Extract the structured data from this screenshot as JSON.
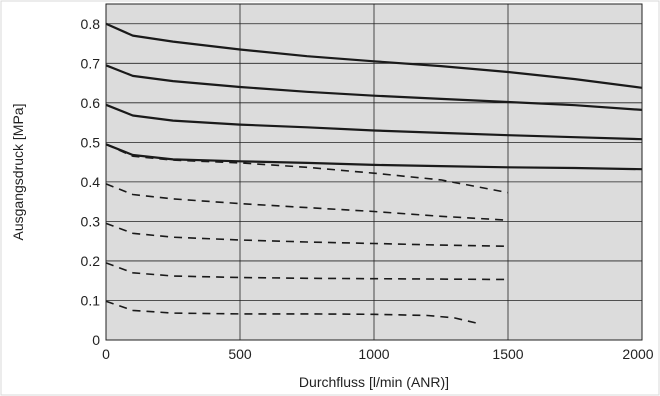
{
  "chart_data": {
    "type": "line",
    "xlabel": "Durchfluss [l/min (ANR)]",
    "ylabel": "Ausgangsdruck [MPa]",
    "xlim": [
      0,
      2000
    ],
    "ylim": [
      0,
      0.85
    ],
    "x_ticks": [
      "0",
      "500",
      "1000",
      "1500",
      "2000"
    ],
    "y_ticks": [
      "0",
      "0.1",
      "0.2",
      "0.3",
      "0.4",
      "0.5",
      "0.6",
      "0.7",
      "0.8"
    ],
    "grid": true,
    "background_color": "#dcdcdc",
    "line_color": "#1a1a1a",
    "series": [
      {
        "style": "solid",
        "x": [
          0,
          100,
          250,
          500,
          750,
          1000,
          1250,
          1500,
          1750,
          2000
        ],
        "y": [
          0.8,
          0.77,
          0.755,
          0.735,
          0.718,
          0.705,
          0.693,
          0.678,
          0.66,
          0.638
        ]
      },
      {
        "style": "solid",
        "x": [
          0,
          100,
          250,
          500,
          750,
          1000,
          1250,
          1500,
          1750,
          2000
        ],
        "y": [
          0.695,
          0.668,
          0.655,
          0.64,
          0.628,
          0.618,
          0.61,
          0.602,
          0.594,
          0.582
        ]
      },
      {
        "style": "solid",
        "x": [
          0,
          100,
          250,
          500,
          750,
          1000,
          1250,
          1500,
          1750,
          2000
        ],
        "y": [
          0.595,
          0.568,
          0.555,
          0.545,
          0.538,
          0.53,
          0.524,
          0.518,
          0.513,
          0.508
        ]
      },
      {
        "style": "solid",
        "x": [
          0,
          100,
          250,
          500,
          750,
          1000,
          1250,
          1500,
          1750,
          2000
        ],
        "y": [
          0.495,
          0.468,
          0.457,
          0.452,
          0.448,
          0.443,
          0.44,
          0.437,
          0.435,
          0.432
        ]
      },
      {
        "style": "dashed",
        "x": [
          0,
          100,
          250,
          500,
          750,
          1000,
          1250,
          1500
        ],
        "y": [
          0.495,
          0.465,
          0.455,
          0.448,
          0.437,
          0.422,
          0.405,
          0.373
        ]
      },
      {
        "style": "dashed",
        "x": [
          0,
          100,
          250,
          500,
          750,
          1000,
          1250,
          1500
        ],
        "y": [
          0.395,
          0.368,
          0.357,
          0.345,
          0.335,
          0.325,
          0.313,
          0.303
        ]
      },
      {
        "style": "dashed",
        "x": [
          0,
          100,
          250,
          500,
          750,
          1000,
          1250,
          1500
        ],
        "y": [
          0.295,
          0.27,
          0.26,
          0.253,
          0.248,
          0.244,
          0.24,
          0.237
        ]
      },
      {
        "style": "dashed",
        "x": [
          0,
          100,
          250,
          500,
          750,
          1000,
          1250,
          1500
        ],
        "y": [
          0.195,
          0.17,
          0.162,
          0.158,
          0.156,
          0.155,
          0.154,
          0.153
        ]
      },
      {
        "style": "dashed",
        "x": [
          0,
          100,
          250,
          500,
          750,
          1000,
          1200,
          1300,
          1400
        ],
        "y": [
          0.098,
          0.075,
          0.068,
          0.066,
          0.066,
          0.065,
          0.062,
          0.056,
          0.04
        ]
      }
    ]
  }
}
